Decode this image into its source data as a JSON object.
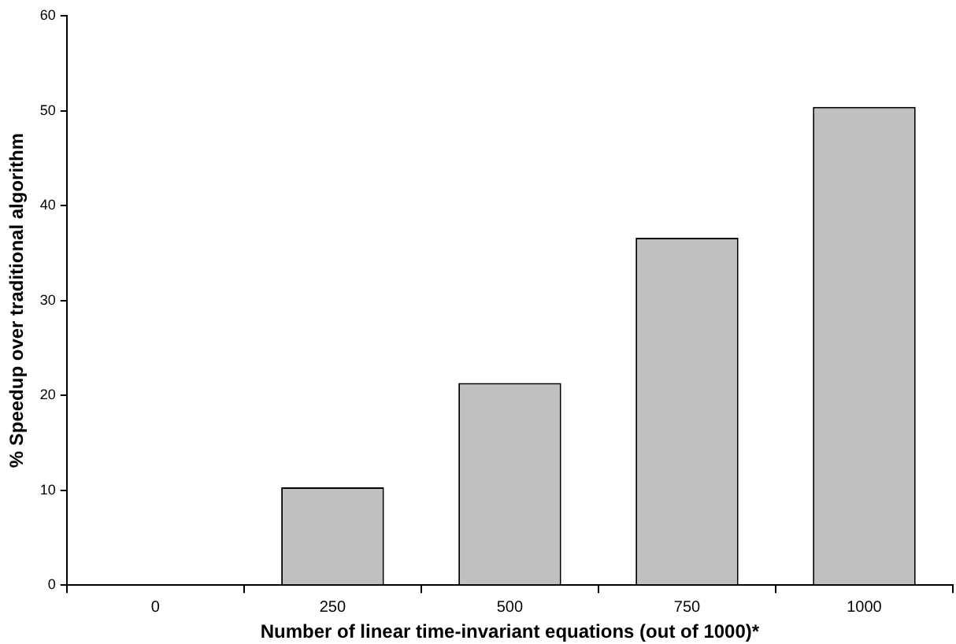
{
  "chart_data": {
    "type": "bar",
    "xlabel": "Number of linear time-invariant equations (out of 1000)*",
    "ylabel": "% Speedup over traditional algorithm",
    "categories": [
      "0",
      "250",
      "500",
      "750",
      "1000"
    ],
    "values": [
      0,
      10.3,
      21.3,
      36.6,
      50.4
    ],
    "color": "#c0c0c0",
    "ylim": [
      0,
      60
    ],
    "yticks": [
      0,
      10,
      20,
      30,
      40,
      50,
      60
    ],
    "grid": false,
    "legend": false
  }
}
